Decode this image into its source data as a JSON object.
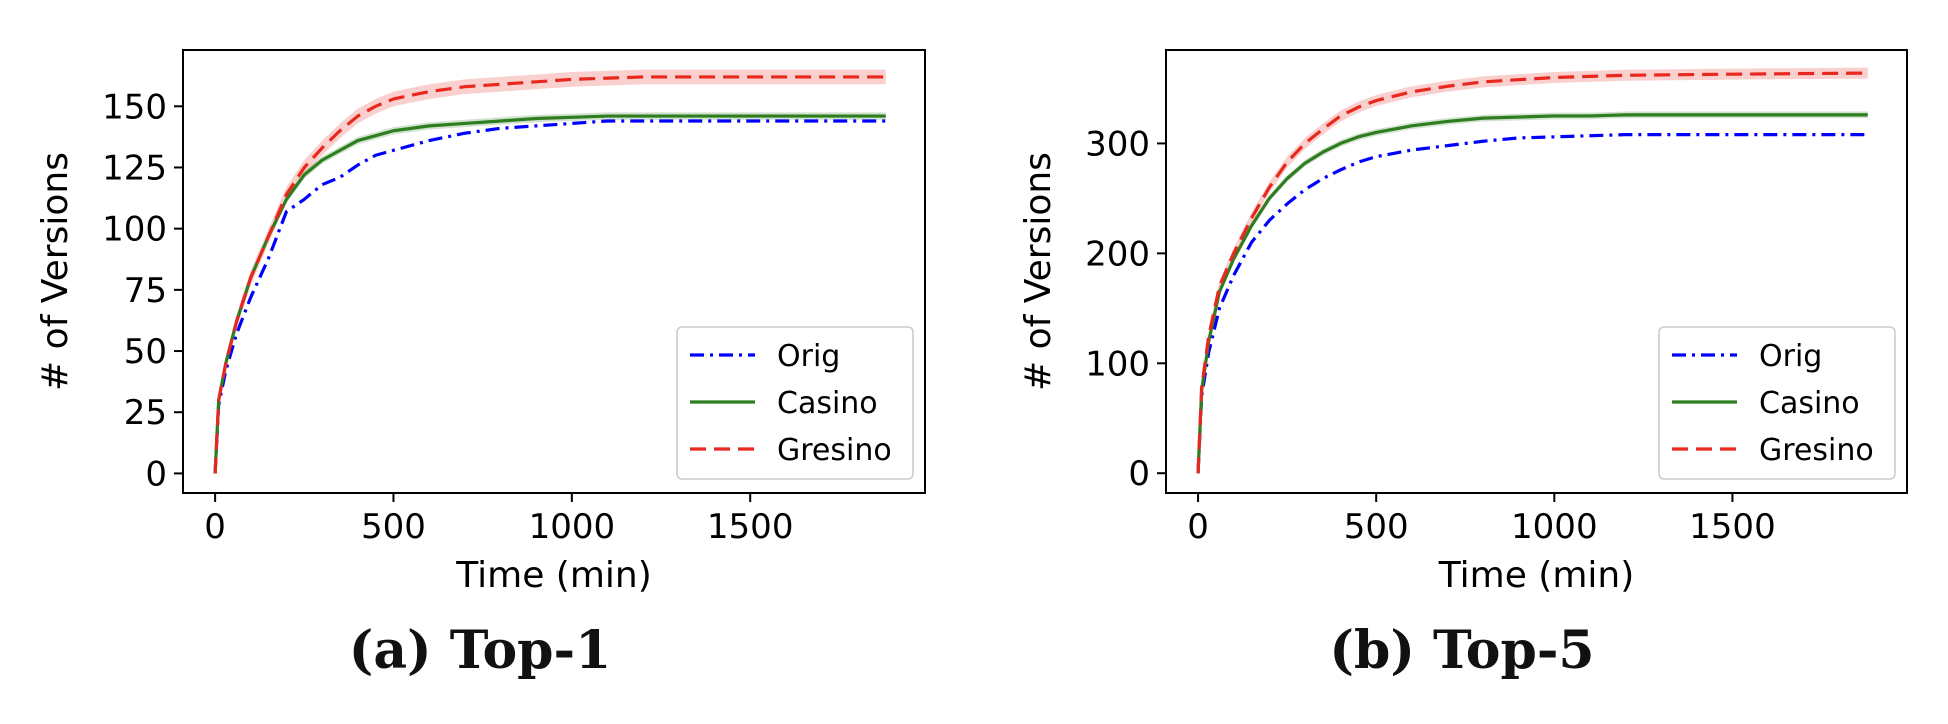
{
  "figure": {
    "captions": [
      "(a) Top-1",
      "(b) Top-5"
    ]
  },
  "chart_data": [
    {
      "type": "line",
      "panel": "(a) Top-1",
      "xlabel": "Time (min)",
      "ylabel": "# of Versions",
      "xlim": [
        -90,
        1990
      ],
      "ylim": [
        -8,
        173
      ],
      "xticks": [
        0,
        500,
        1000,
        1500
      ],
      "yticks": [
        0,
        25,
        50,
        75,
        100,
        125,
        150
      ],
      "grid": false,
      "legend_position": "lower right",
      "series": [
        {
          "name": "Orig",
          "color": "#0000ff",
          "style": "dashdot",
          "band": 0,
          "x": [
            0,
            10,
            30,
            60,
            100,
            150,
            200,
            250,
            300,
            350,
            400,
            450,
            500,
            600,
            700,
            800,
            900,
            1000,
            1100,
            1200,
            1500,
            1880
          ],
          "y": [
            0,
            28,
            42,
            57,
            72,
            88,
            107,
            112,
            118,
            121,
            126,
            130,
            132,
            136,
            139,
            141,
            142,
            143,
            144,
            144,
            144,
            144
          ]
        },
        {
          "name": "Casino",
          "color": "#2e7d1f",
          "style": "solid",
          "band": 1.5,
          "x": [
            0,
            10,
            30,
            60,
            100,
            150,
            200,
            250,
            300,
            350,
            400,
            450,
            500,
            600,
            700,
            800,
            900,
            1000,
            1100,
            1200,
            1500,
            1880
          ],
          "y": [
            0,
            30,
            45,
            62,
            80,
            97,
            112,
            122,
            128,
            132,
            136,
            138,
            140,
            142,
            143,
            144,
            145,
            145.5,
            146,
            146,
            146,
            146
          ]
        },
        {
          "name": "Gresino",
          "color": "#e8281e",
          "style": "dashed",
          "band": 3,
          "x": [
            0,
            10,
            30,
            60,
            100,
            150,
            200,
            250,
            300,
            350,
            400,
            450,
            500,
            600,
            700,
            800,
            900,
            1000,
            1100,
            1200,
            1500,
            1880
          ],
          "y": [
            0,
            30,
            45,
            62,
            80,
            97,
            114,
            125,
            133,
            140,
            146,
            150,
            153,
            156,
            158,
            159,
            160,
            161,
            161.5,
            162,
            162,
            162
          ]
        }
      ]
    },
    {
      "type": "line",
      "panel": "(b) Top-5",
      "xlabel": "Time (min)",
      "ylabel": "# of Versions",
      "xlim": [
        -90,
        1990
      ],
      "ylim": [
        -18,
        385
      ],
      "xticks": [
        0,
        500,
        1000,
        1500
      ],
      "yticks": [
        0,
        100,
        200,
        300
      ],
      "grid": false,
      "legend_position": "lower right",
      "series": [
        {
          "name": "Orig",
          "color": "#0000ff",
          "style": "dashdot",
          "band": 0,
          "x": [
            0,
            10,
            30,
            60,
            100,
            150,
            200,
            250,
            300,
            350,
            400,
            450,
            500,
            600,
            700,
            800,
            900,
            1000,
            1100,
            1200,
            1500,
            1880
          ],
          "y": [
            0,
            70,
            110,
            150,
            180,
            210,
            230,
            245,
            258,
            268,
            276,
            283,
            288,
            294,
            298,
            302,
            305,
            306,
            307,
            308,
            308,
            308
          ]
        },
        {
          "name": "Casino",
          "color": "#2e7d1f",
          "style": "solid",
          "band": 3,
          "x": [
            0,
            10,
            30,
            60,
            100,
            150,
            200,
            250,
            300,
            350,
            400,
            450,
            500,
            600,
            700,
            800,
            900,
            1000,
            1100,
            1200,
            1500,
            1880
          ],
          "y": [
            0,
            75,
            120,
            165,
            195,
            225,
            250,
            268,
            282,
            292,
            300,
            306,
            310,
            316,
            320,
            323,
            324,
            325,
            325,
            326,
            326,
            326
          ]
        },
        {
          "name": "Gresino",
          "color": "#e8281e",
          "style": "dashed",
          "band": 5,
          "x": [
            0,
            10,
            30,
            60,
            100,
            150,
            200,
            250,
            300,
            350,
            400,
            450,
            500,
            600,
            700,
            800,
            900,
            1000,
            1100,
            1200,
            1500,
            1880
          ],
          "y": [
            0,
            78,
            125,
            170,
            200,
            232,
            260,
            283,
            300,
            313,
            325,
            333,
            339,
            347,
            352,
            356,
            358,
            360,
            361,
            362,
            363,
            364
          ]
        }
      ]
    }
  ]
}
